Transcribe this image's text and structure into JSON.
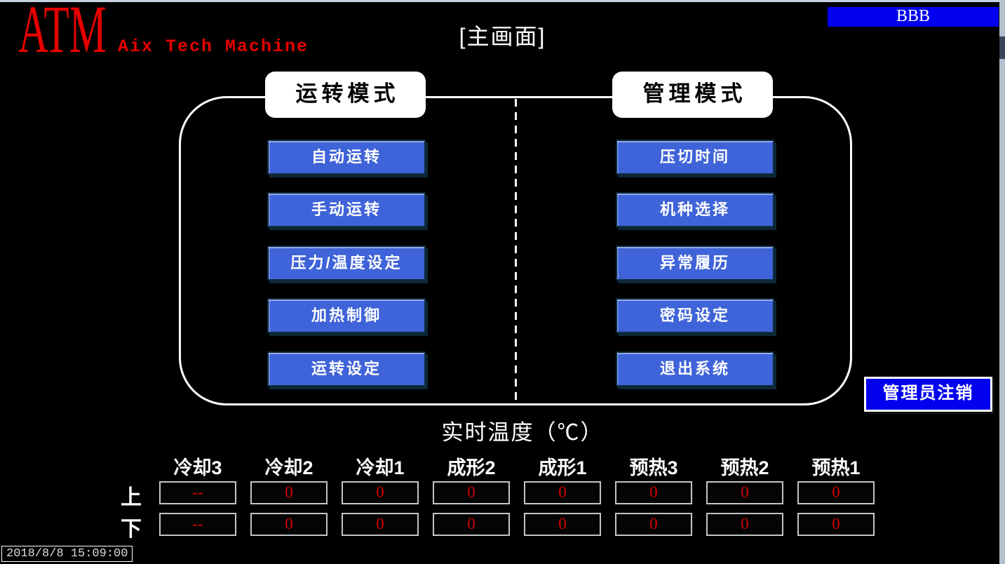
{
  "header": {
    "logo_main": "ATM",
    "logo_sub": "Aix Tech Machine",
    "screen_title": "[主画面]",
    "bbb_button_label": "BBB"
  },
  "modes": {
    "left": {
      "title": "运转模式",
      "buttons": [
        "自动运转",
        "手动运转",
        "压力/温度设定",
        "加热制御",
        "运转设定"
      ]
    },
    "right": {
      "title": "管理模式",
      "buttons": [
        "压切时间",
        "机种选择",
        "异常履历",
        "密码设定",
        "退出系统"
      ]
    }
  },
  "logout_button_label": "管理员注销",
  "temperature_panel": {
    "title": "实时温度（℃）",
    "columns": [
      "冷却3",
      "冷却2",
      "冷却1",
      "成形2",
      "成形1",
      "预热3",
      "预热2",
      "预热1"
    ],
    "rows": [
      {
        "label": "上",
        "values": [
          "--",
          "0",
          "0",
          "0",
          "0",
          "0",
          "0",
          "0"
        ]
      },
      {
        "label": "下",
        "values": [
          "--",
          "0",
          "0",
          "0",
          "0",
          "0",
          "0",
          "0"
        ]
      }
    ]
  },
  "status_bar": {
    "datetime": "2018/8/8 15:09:00"
  },
  "colors": {
    "background": "#000000",
    "mode_button_blue": "#3f63d8",
    "pure_blue": "#0101ef",
    "logo_red": "#e60000",
    "value_red": "#d40000",
    "outline_white": "#ffffff",
    "top_strip": "#c6d1e2",
    "scrollbar_track": "#b3bfcc"
  }
}
